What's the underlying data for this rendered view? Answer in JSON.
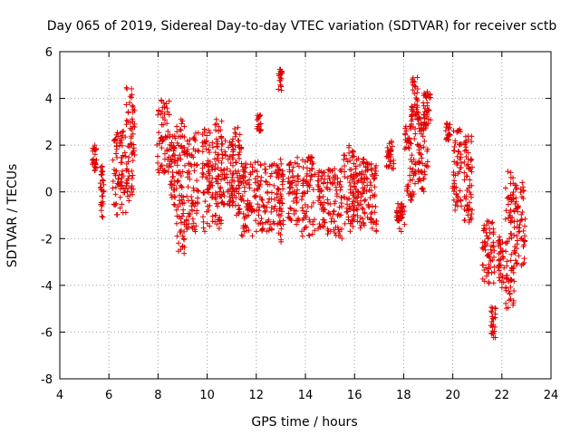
{
  "chart_data": {
    "type": "scatter",
    "title": "Day 065 of 2019, Sidereal Day-to-day VTEC variation (SDTVAR) for receiver sctb",
    "xlabel": "GPS time / hours",
    "ylabel": "SDTVAR / TECUs",
    "xlim": [
      4,
      24
    ],
    "ylim": [
      -8,
      6
    ],
    "xticks": [
      4,
      6,
      8,
      10,
      12,
      14,
      16,
      18,
      20,
      22,
      24
    ],
    "yticks": [
      -8,
      -6,
      -4,
      -2,
      0,
      2,
      4,
      6
    ],
    "xtick_labels": [
      "4",
      "6",
      "8",
      "10",
      "12",
      "14",
      "16",
      "18",
      "20",
      "22",
      "24"
    ],
    "ytick_labels": [
      "-8",
      "-6",
      "-4",
      "-2",
      "0",
      "2",
      "4",
      "6"
    ],
    "grid": true,
    "marker": "+",
    "color": "#e00000",
    "series": [
      {
        "name": "sctb",
        "clusters": [
          {
            "x": [
              5.3,
              5.5
            ],
            "y": [
              0.8,
              2.0
            ]
          },
          {
            "x": [
              5.65,
              5.8
            ],
            "y": [
              -1.1,
              1.2
            ]
          },
          {
            "x": [
              6.15,
              6.7
            ],
            "y": [
              -1.0,
              2.6
            ]
          },
          {
            "x": [
              6.7,
              7.05
            ],
            "y": [
              -0.4,
              4.5
            ]
          },
          {
            "x": [
              7.95,
              8.5
            ],
            "y": [
              0.8,
              4.0
            ]
          },
          {
            "x": [
              8.5,
              8.7
            ],
            "y": [
              -0.6,
              2.4
            ]
          },
          {
            "x": [
              8.75,
              9.1
            ],
            "y": [
              -2.7,
              3.3
            ]
          },
          {
            "x": [
              9.15,
              9.65
            ],
            "y": [
              -1.7,
              2.7
            ]
          },
          {
            "x": [
              9.8,
              10.25
            ],
            "y": [
              -1.7,
              2.8
            ]
          },
          {
            "x": [
              10.3,
              10.6
            ],
            "y": [
              -1.6,
              3.3
            ]
          },
          {
            "x": [
              10.6,
              11.1
            ],
            "y": [
              -0.6,
              2.2
            ]
          },
          {
            "x": [
              11.0,
              11.4
            ],
            "y": [
              -1.0,
              2.9
            ]
          },
          {
            "x": [
              11.4,
              11.85
            ],
            "y": [
              -1.9,
              1.5
            ]
          },
          {
            "x": [
              12.0,
              12.2
            ],
            "y": [
              2.6,
              3.3
            ]
          },
          {
            "x": [
              11.9,
              12.9
            ],
            "y": [
              -1.7,
              1.3
            ]
          },
          {
            "x": [
              12.9,
              13.05
            ],
            "y": [
              4.3,
              5.3
            ]
          },
          {
            "x": [
              12.9,
              13.1
            ],
            "y": [
              -2.2,
              1.4
            ]
          },
          {
            "x": [
              13.3,
              13.75
            ],
            "y": [
              -1.5,
              1.6
            ]
          },
          {
            "x": [
              13.85,
              14.4
            ],
            "y": [
              -1.9,
              1.5
            ]
          },
          {
            "x": [
              14.5,
              14.8
            ],
            "y": [
              -1.6,
              1.0
            ]
          },
          {
            "x": [
              14.85,
              15.5
            ],
            "y": [
              -2.0,
              1.0
            ]
          },
          {
            "x": [
              15.55,
              16.0
            ],
            "y": [
              -1.7,
              2.1
            ]
          },
          {
            "x": [
              15.95,
              16.4
            ],
            "y": [
              -1.6,
              1.5
            ]
          },
          {
            "x": [
              16.4,
              16.9
            ],
            "y": [
              -1.7,
              1.3
            ]
          },
          {
            "x": [
              17.3,
              17.6
            ],
            "y": [
              1.0,
              2.2
            ]
          },
          {
            "x": [
              17.7,
              18.05
            ],
            "y": [
              -1.7,
              -0.5
            ]
          },
          {
            "x": [
              18.05,
              18.5
            ],
            "y": [
              -0.4,
              3.0
            ]
          },
          {
            "x": [
              18.3,
              18.6
            ],
            "y": [
              3.0,
              4.9
            ]
          },
          {
            "x": [
              18.55,
              19.0
            ],
            "y": [
              0.0,
              3.3
            ]
          },
          {
            "x": [
              18.8,
              19.1
            ],
            "y": [
              2.8,
              4.3
            ]
          },
          {
            "x": [
              19.7,
              19.9
            ],
            "y": [
              2.2,
              3.0
            ]
          },
          {
            "x": [
              20.0,
              20.35
            ],
            "y": [
              -0.8,
              2.7
            ]
          },
          {
            "x": [
              20.45,
              20.8
            ],
            "y": [
              -1.4,
              2.4
            ]
          },
          {
            "x": [
              21.2,
              21.7
            ],
            "y": [
              -4.0,
              -1.2
            ]
          },
          {
            "x": [
              21.55,
              21.75
            ],
            "y": [
              -6.3,
              -4.9
            ]
          },
          {
            "x": [
              21.85,
              22.1
            ],
            "y": [
              -4.1,
              -1.8
            ]
          },
          {
            "x": [
              22.15,
              22.5
            ],
            "y": [
              -5.0,
              0.9
            ]
          },
          {
            "x": [
              22.5,
              22.95
            ],
            "y": [
              -3.2,
              0.4
            ]
          }
        ]
      }
    ]
  }
}
